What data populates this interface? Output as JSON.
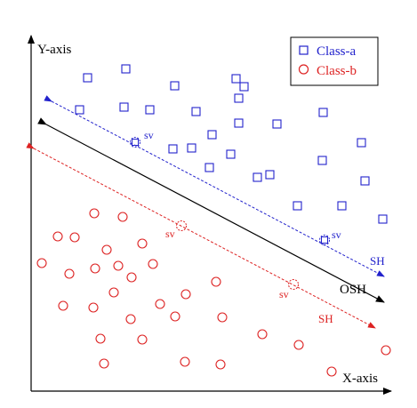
{
  "axes": {
    "y_label": "Y-axis",
    "x_label": "X-axis"
  },
  "legend": {
    "class_a_label": "Class-a",
    "class_b_label": "Class-b"
  },
  "labels": {
    "sv": "sv",
    "sh": "SH",
    "osh": "OSH"
  },
  "colors": {
    "class_a": "#2222cc",
    "class_b": "#dd2222",
    "osh": "#000000"
  },
  "icons": {
    "class_a_marker": "square-outline",
    "class_b_marker": "circle-outline",
    "support_vector_marker": "dashed-circle"
  }
}
